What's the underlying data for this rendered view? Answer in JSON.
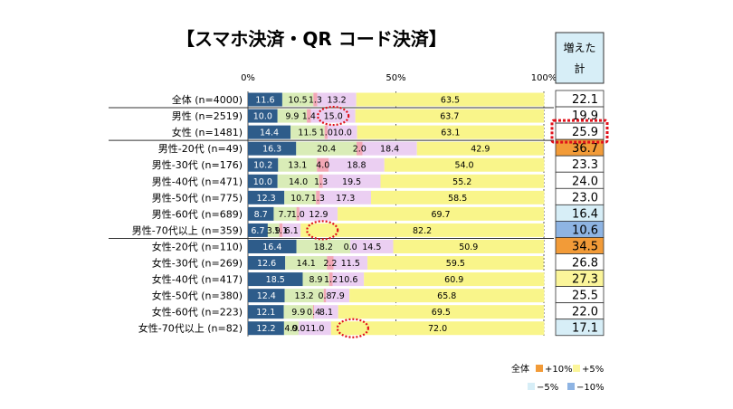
{
  "chart_data": {
    "type": "bar",
    "stacked": true,
    "orientation": "horizontal",
    "title": "【スマホ決済・QR コード決済】",
    "x_ticks": [
      "0%",
      "50%",
      "100%"
    ],
    "xlim": [
      0,
      100
    ],
    "side_column_header": "増えた計",
    "categories": [
      "全体 (n=4000)",
      "男性 (n=2519)",
      "女性 (n=1481)",
      "男性-20代 (n=49)",
      "男性-30代 (n=176)",
      "男性-40代 (n=471)",
      "男性-50代 (n=775)",
      "男性-60代 (n=689)",
      "男性-70代以上 (n=359)",
      "女性-20代 (n=110)",
      "女性-30代 (n=269)",
      "女性-40代 (n=417)",
      "女性-50代 (n=380)",
      "女性-60代 (n=223)",
      "女性-70代以上 (n=82)"
    ],
    "series": [
      {
        "color": "#2e5c8a",
        "values": [
          11.6,
          10.0,
          14.4,
          16.3,
          10.2,
          10.0,
          12.3,
          8.7,
          6.7,
          16.4,
          12.6,
          18.5,
          12.4,
          12.1,
          12.2
        ]
      },
      {
        "color": "#d9ecb7",
        "values": [
          10.5,
          9.9,
          11.5,
          20.4,
          13.1,
          14.0,
          10.7,
          7.7,
          3.9,
          18.2,
          14.1,
          8.9,
          13.2,
          9.9,
          4.9
        ]
      },
      {
        "color": "#f2a7b5",
        "values": [
          1.3,
          1.4,
          1.0,
          2.0,
          4.0,
          1.3,
          1.3,
          1.0,
          1.1,
          0.0,
          2.2,
          1.2,
          0.8,
          0.4,
          0.0
        ]
      },
      {
        "color": "#ebcff2",
        "values": [
          13.2,
          15.0,
          10.0,
          18.4,
          18.8,
          19.5,
          17.3,
          12.9,
          6.1,
          14.5,
          11.5,
          10.6,
          7.9,
          8.1,
          11.0
        ]
      },
      {
        "color": "#f9f58a",
        "values": [
          63.5,
          63.7,
          63.1,
          42.9,
          54.0,
          55.2,
          58.5,
          69.7,
          82.2,
          50.9,
          59.5,
          60.9,
          65.8,
          69.5,
          72.0
        ]
      }
    ],
    "value_labels": [
      [
        "11.6",
        "10.5",
        "1.3",
        "13.2",
        "63.5"
      ],
      [
        "10.0",
        "9.9",
        "1.4",
        "15.0",
        "63.7"
      ],
      [
        "14.4",
        "11.5",
        "1.0",
        "10.0",
        "63.1"
      ],
      [
        "16.3",
        "20.4",
        "2.0",
        "18.4",
        "42.9"
      ],
      [
        "10.2",
        "13.1",
        "4.0",
        "18.8",
        "54.0"
      ],
      [
        "10.0",
        "14.0",
        "1.3",
        "19.5",
        "55.2"
      ],
      [
        "12.3",
        "10.7",
        "1.3",
        "17.3",
        "58.5"
      ],
      [
        "8.7",
        "7.7",
        "1.0",
        "12.9",
        "69.7"
      ],
      [
        "6.7",
        "3.9",
        "1.1",
        "6.1",
        "82.2"
      ],
      [
        "16.4",
        "18.2",
        "0.0",
        "14.5",
        "50.9"
      ],
      [
        "12.6",
        "14.1",
        "2.2",
        "11.5",
        "59.5"
      ],
      [
        "18.5",
        "8.9",
        "1.2",
        "10.6",
        "60.9"
      ],
      [
        "12.4",
        "13.2",
        "0.8",
        "7.9",
        "65.8"
      ],
      [
        "12.1",
        "9.9",
        "0.4",
        "8.1",
        "69.5"
      ],
      [
        "12.2",
        "4.9",
        "0.0",
        "11.0",
        "72.0"
      ]
    ],
    "side_values": [
      "22.1",
      "19.9",
      "25.9",
      "36.7",
      "23.3",
      "24.0",
      "23.0",
      "16.4",
      "10.6",
      "34.5",
      "26.8",
      "27.3",
      "25.5",
      "22.0",
      "17.1"
    ],
    "side_cell_colors": [
      "#ffffff",
      "#ffffff",
      "#ffffff",
      "#f29b38",
      "#ffffff",
      "#ffffff",
      "#ffffff",
      "#d7eef7",
      "#8eb4e3",
      "#f29b38",
      "#ffffff",
      "#fbf59a",
      "#ffffff",
      "#ffffff",
      "#d7eef7"
    ],
    "header_cell_color": "#d7eef7",
    "highlighted_side_rows": [
      2
    ],
    "circled_segments": [
      [
        1,
        3
      ],
      [
        8,
        4
      ],
      [
        14,
        4
      ]
    ],
    "legend": {
      "prefix": "全体",
      "items": [
        {
          "label": "+10%",
          "color": "#f29b38"
        },
        {
          "label": "+5%",
          "color": "#fbf59a"
        },
        {
          "label": "−5%",
          "color": "#d7eef7"
        },
        {
          "label": "−10%",
          "color": "#8eb4e3"
        }
      ]
    }
  }
}
